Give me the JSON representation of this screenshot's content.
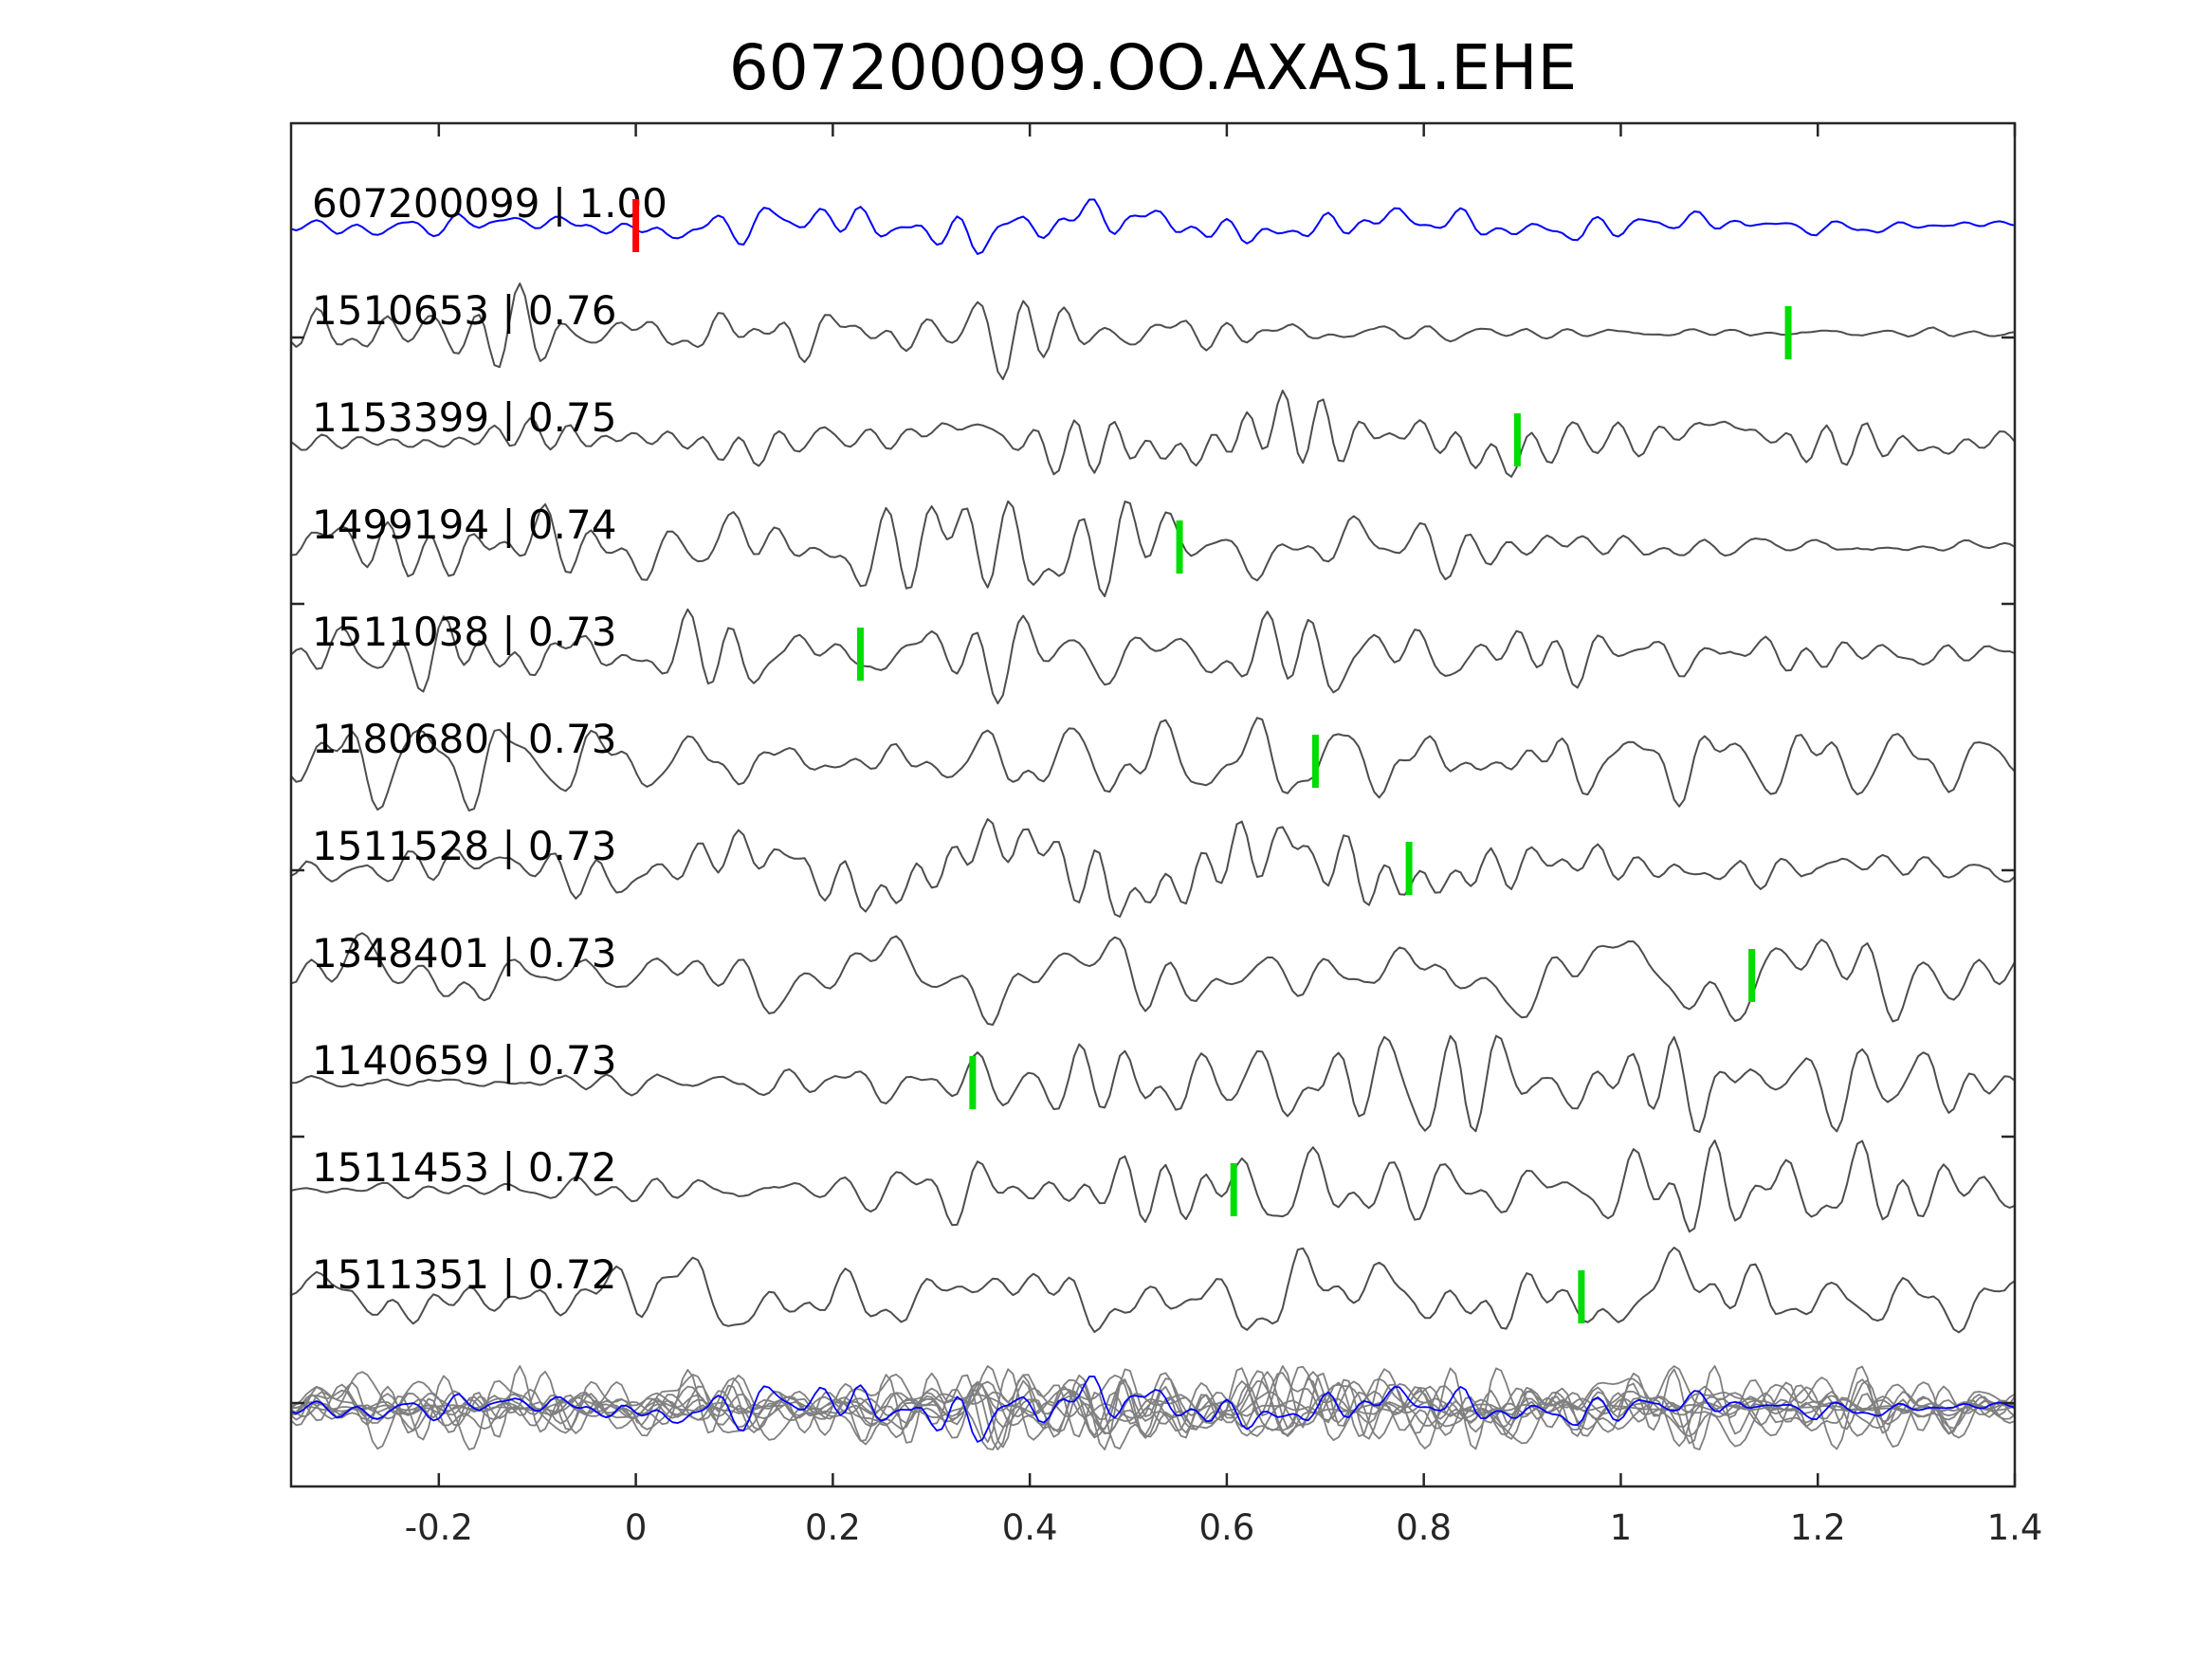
{
  "chart_data": {
    "type": "line",
    "title": "607200099.OO.AXAS1.EHE",
    "xlim": [
      -0.35,
      1.4
    ],
    "xticks": [
      -0.2,
      0,
      0.2,
      0.4,
      0.6,
      0.8,
      1,
      1.2,
      1.4
    ],
    "xtick_labels": [
      "-0.2",
      "0",
      "0.2",
      "0.4",
      "0.6",
      "0.8",
      "1",
      "1.2",
      "1.4"
    ],
    "grid": false,
    "colors": {
      "reference_trace": "#0000ff",
      "trace": "#4d4d4d",
      "stack_trace": "#808080",
      "reference_pick": "#ff0000",
      "match_pick": "#00dd00"
    },
    "series": [
      {
        "label": "607200099 | 1.00",
        "pick": 0.0,
        "reference": true
      },
      {
        "label": "1510653 | 0.76",
        "pick": 1.17
      },
      {
        "label": "1153399 | 0.75",
        "pick": 0.895
      },
      {
        "label": "1499194 | 0.74",
        "pick": 0.552
      },
      {
        "label": "1511038 | 0.73",
        "pick": 0.228
      },
      {
        "label": "1180680 | 0.73",
        "pick": 0.69
      },
      {
        "label": "1511528 | 0.73",
        "pick": 0.785
      },
      {
        "label": "1348401 | 0.73",
        "pick": 1.133
      },
      {
        "label": "1140659 | 0.73",
        "pick": 0.342
      },
      {
        "label": "1511453 | 0.72",
        "pick": 0.607
      },
      {
        "label": "1511351 | 0.72",
        "pick": 0.96
      }
    ]
  }
}
